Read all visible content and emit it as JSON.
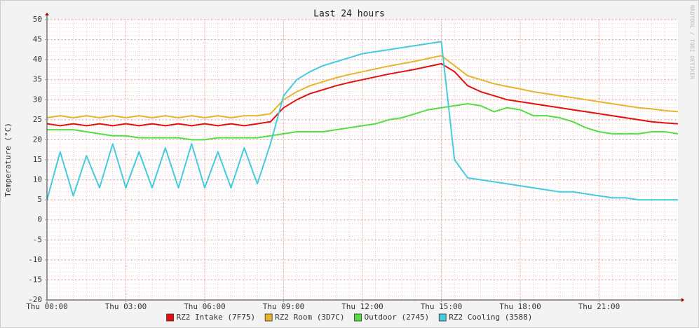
{
  "chart_data": {
    "type": "line",
    "title": "Last 24 hours",
    "y_label": "Temperature (°C)",
    "watermark": "RRDTOOL / TOBI OETIKER",
    "x": [
      0,
      0.5,
      1,
      1.5,
      2,
      2.5,
      3,
      3.5,
      4,
      4.5,
      5,
      5.5,
      6,
      6.5,
      7,
      7.5,
      8,
      8.5,
      9,
      9.5,
      10,
      10.5,
      11,
      11.5,
      12,
      12.5,
      13,
      13.5,
      14,
      14.5,
      15,
      15.5,
      16,
      16.5,
      17,
      17.5,
      18,
      18.5,
      19,
      19.5,
      20,
      20.5,
      21,
      21.5,
      22,
      22.5,
      23,
      23.5,
      24
    ],
    "xlim": [
      0,
      24
    ],
    "xticks": [
      {
        "value": 0,
        "label": "Thu 00:00"
      },
      {
        "value": 3,
        "label": "Thu 03:00"
      },
      {
        "value": 6,
        "label": "Thu 06:00"
      },
      {
        "value": 9,
        "label": "Thu 09:00"
      },
      {
        "value": 12,
        "label": "Thu 12:00"
      },
      {
        "value": 15,
        "label": "Thu 15:00"
      },
      {
        "value": 18,
        "label": "Thu 18:00"
      },
      {
        "value": 21,
        "label": "Thu 21:00"
      }
    ],
    "ylim": [
      -20,
      50
    ],
    "yticks": [
      -20,
      -15,
      -10,
      -5,
      0,
      5,
      10,
      15,
      20,
      25,
      30,
      35,
      40,
      45,
      50
    ],
    "grid": true,
    "series": [
      {
        "name": "RZ2 Intake (7F75)",
        "color": "#e41010",
        "values": [
          24,
          23.5,
          24,
          23.5,
          24,
          23.5,
          24,
          23.5,
          24,
          23.5,
          24,
          23.5,
          24,
          23.5,
          24,
          23.5,
          24,
          24.5,
          28,
          30,
          31.5,
          32.5,
          33.5,
          34.3,
          35,
          35.7,
          36.4,
          37,
          37.6,
          38.3,
          39,
          37,
          33.5,
          32,
          31,
          30,
          29.5,
          29,
          28.5,
          28,
          27.5,
          27,
          26.5,
          26,
          25.5,
          25,
          24.5,
          24.2,
          24
        ]
      },
      {
        "name": "RZ2 Room (3D7C)",
        "color": "#e6b52c",
        "values": [
          25.5,
          26,
          25.5,
          26,
          25.5,
          26,
          25.5,
          26,
          25.5,
          26,
          25.5,
          26,
          25.5,
          26,
          25.5,
          26,
          26,
          26.5,
          30,
          32,
          33.5,
          34.5,
          35.5,
          36.3,
          37,
          37.7,
          38.4,
          39,
          39.6,
          40.3,
          41,
          38.5,
          36,
          35,
          34,
          33.3,
          32.7,
          32,
          31.5,
          31,
          30.5,
          30,
          29.5,
          29,
          28.5,
          28,
          27.7,
          27.3,
          27
        ]
      },
      {
        "name": "Outdoor (2745)",
        "color": "#55dd44",
        "values": [
          22.5,
          22.5,
          22.5,
          22,
          21.5,
          21,
          21,
          20.5,
          20.5,
          20.5,
          20.5,
          20,
          20,
          20.5,
          20.5,
          20.5,
          20.5,
          21,
          21.5,
          22,
          22,
          22,
          22.5,
          23,
          23.5,
          24,
          25,
          25.5,
          26.5,
          27.5,
          28,
          28.5,
          29,
          28.5,
          27,
          28,
          27.5,
          26,
          26,
          25.5,
          24.5,
          23,
          22,
          21.5,
          21.5,
          21.5,
          22,
          22,
          21.5
        ]
      },
      {
        "name": "RZ2 Cooling (3588)",
        "color": "#44ccdd",
        "values": [
          5,
          17,
          6,
          16,
          8,
          19,
          8,
          17,
          8,
          18,
          8,
          19,
          8,
          17,
          8,
          18,
          9,
          19,
          31,
          35,
          37,
          38.5,
          39.5,
          40.5,
          41.5,
          42,
          42.5,
          43,
          43.5,
          44,
          44.5,
          15,
          10.5,
          10,
          9.5,
          9,
          8.5,
          8,
          7.5,
          7,
          7,
          6.5,
          6,
          5.5,
          5.5,
          5,
          5,
          5,
          5
        ]
      }
    ]
  }
}
